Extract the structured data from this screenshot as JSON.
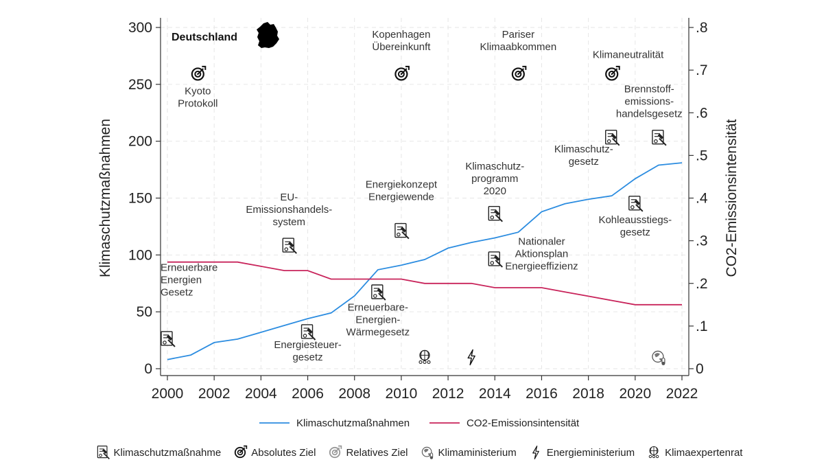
{
  "chart_data": {
    "type": "line",
    "country": "Deutschland",
    "xlabel": "",
    "y_left_label": "Klimaschutzmaßnahmen",
    "y_right_label": "CO2-Emissionsintensität",
    "x_ticks": [
      "2000",
      "2002",
      "2004",
      "2006",
      "2008",
      "2010",
      "2012",
      "2014",
      "2016",
      "2018",
      "2020",
      "2022"
    ],
    "y_left_ticks": [
      "0",
      "50",
      "100",
      "150",
      "200",
      "250",
      "300"
    ],
    "y_right_ticks": [
      "0",
      ".1",
      ".2",
      ".3",
      ".4",
      ".5",
      ".6",
      ".7",
      ".8"
    ],
    "xlim": [
      2000,
      2022
    ],
    "y_left_lim": [
      0,
      300
    ],
    "y_right_lim": [
      0,
      0.8
    ],
    "grid": true,
    "legend_position": "bottom",
    "series": [
      {
        "name": "Klimaschutzmaßnahmen",
        "axis": "left",
        "color": "#2b8ce0",
        "x": [
          2000,
          2001,
          2002,
          2003,
          2004,
          2005,
          2006,
          2007,
          2008,
          2009,
          2010,
          2011,
          2012,
          2013,
          2014,
          2015,
          2016,
          2017,
          2018,
          2019,
          2020,
          2021,
          2022
        ],
        "values": [
          8,
          12,
          23,
          26,
          32,
          38,
          44,
          49,
          64,
          87,
          91,
          96,
          106,
          111,
          115,
          120,
          138,
          145,
          149,
          152,
          167,
          179,
          181
        ]
      },
      {
        "name": "CO2-Emissionsintensität",
        "axis": "right",
        "color": "#c8235a",
        "x": [
          2000,
          2001,
          2002,
          2003,
          2004,
          2005,
          2006,
          2007,
          2008,
          2009,
          2010,
          2011,
          2012,
          2013,
          2014,
          2015,
          2016,
          2017,
          2018,
          2019,
          2020,
          2021,
          2022
        ],
        "values": [
          0.25,
          0.25,
          0.25,
          0.25,
          0.24,
          0.23,
          0.23,
          0.21,
          0.21,
          0.21,
          0.21,
          0.2,
          0.2,
          0.2,
          0.19,
          0.19,
          0.19,
          0.18,
          0.17,
          0.16,
          0.15,
          0.15,
          0.15
        ]
      }
    ],
    "events": [
      {
        "year": 2000,
        "y": 26,
        "icon": "measure",
        "lines": [
          "Erneuerbare",
          "Energien",
          "Gesetz"
        ],
        "label_y": 86,
        "anchor": "start"
      },
      {
        "year": 2001.3,
        "y": 259,
        "icon": "absolute-target",
        "lines": [
          "Kyoto",
          "Protokoll"
        ],
        "label_y": 241,
        "anchor": "middle"
      },
      {
        "year": 2005.2,
        "y": 108,
        "icon": "measure",
        "lines": [
          "EU-",
          "Emissionshandels-",
          "system"
        ],
        "label_y": 148,
        "anchor": "middle"
      },
      {
        "year": 2006,
        "y": 32,
        "icon": "measure",
        "lines": [
          "Energiesteuer-",
          "gesetz"
        ],
        "label_y": 18,
        "anchor": "middle"
      },
      {
        "year": 2009,
        "y": 67,
        "icon": "measure",
        "lines": [
          "Erneuerbare-",
          "Energien-",
          "Wärmegesetz"
        ],
        "label_y": 51,
        "anchor": "middle"
      },
      {
        "year": 2010,
        "y": 121,
        "icon": "measure",
        "lines": [
          "Energiekonzept",
          "Energiewende"
        ],
        "label_y": 159,
        "anchor": "middle"
      },
      {
        "year": 2010,
        "y": 259,
        "icon": "absolute-target",
        "lines": [
          "Kopenhagen",
          "Übereinkunft"
        ],
        "label_y": 291,
        "anchor": "middle"
      },
      {
        "year": 2011,
        "y": 10,
        "icon": "expert-council",
        "lines": [],
        "anchor": "middle"
      },
      {
        "year": 2013,
        "y": 10,
        "icon": "energy-ministry",
        "lines": [],
        "anchor": "middle"
      },
      {
        "year": 2014,
        "y": 136,
        "icon": "measure",
        "lines": [
          "Klimaschutz-",
          "programm",
          "2020"
        ],
        "label_y": 175,
        "anchor": "middle"
      },
      {
        "year": 2014,
        "y": 96,
        "icon": "measure",
        "lines": [
          "Nationaler",
          "Aktionsplan",
          "Energieeffizienz"
        ],
        "label_y": 109,
        "anchor": "middle",
        "label_x": 2016
      },
      {
        "year": 2015,
        "y": 259,
        "icon": "absolute-target",
        "lines": [
          "Pariser",
          "Klimaabkommen"
        ],
        "label_y": 291,
        "anchor": "middle"
      },
      {
        "year": 2019,
        "y": 203,
        "icon": "measure",
        "lines": [
          "Klimaschutz-",
          "gesetz"
        ],
        "label_y": 190,
        "anchor": "middle",
        "label_x": 2017.8
      },
      {
        "year": 2019,
        "y": 259,
        "icon": "absolute-target",
        "lines": [
          "Klimaneutralität"
        ],
        "label_y": 273,
        "anchor": "middle",
        "label_x": 2019.7
      },
      {
        "year": 2020,
        "y": 145,
        "icon": "measure",
        "lines": [
          "Kohleausstiegs-",
          "gesetz"
        ],
        "label_y": 128,
        "anchor": "middle"
      },
      {
        "year": 2021,
        "y": 203,
        "icon": "measure",
        "lines": [
          "Brennstoff-",
          "emissions-",
          "handelsgesetz"
        ],
        "label_y": 243,
        "anchor": "middle",
        "label_x": 2020.6
      },
      {
        "year": 2021,
        "y": 10,
        "icon": "climate-ministry",
        "lines": [],
        "anchor": "middle"
      }
    ]
  },
  "symbol_legend": [
    {
      "icon": "measure",
      "label": "Klimaschutzmaßnahme"
    },
    {
      "icon": "absolute-target",
      "label": "Absolutes Ziel"
    },
    {
      "icon": "relative-target",
      "label": "Relatives Ziel"
    },
    {
      "icon": "climate-ministry",
      "label": "Klimaministerium"
    },
    {
      "icon": "energy-ministry",
      "label": "Energieministerium"
    },
    {
      "icon": "expert-council",
      "label": "Klimaexpertenrat"
    }
  ]
}
